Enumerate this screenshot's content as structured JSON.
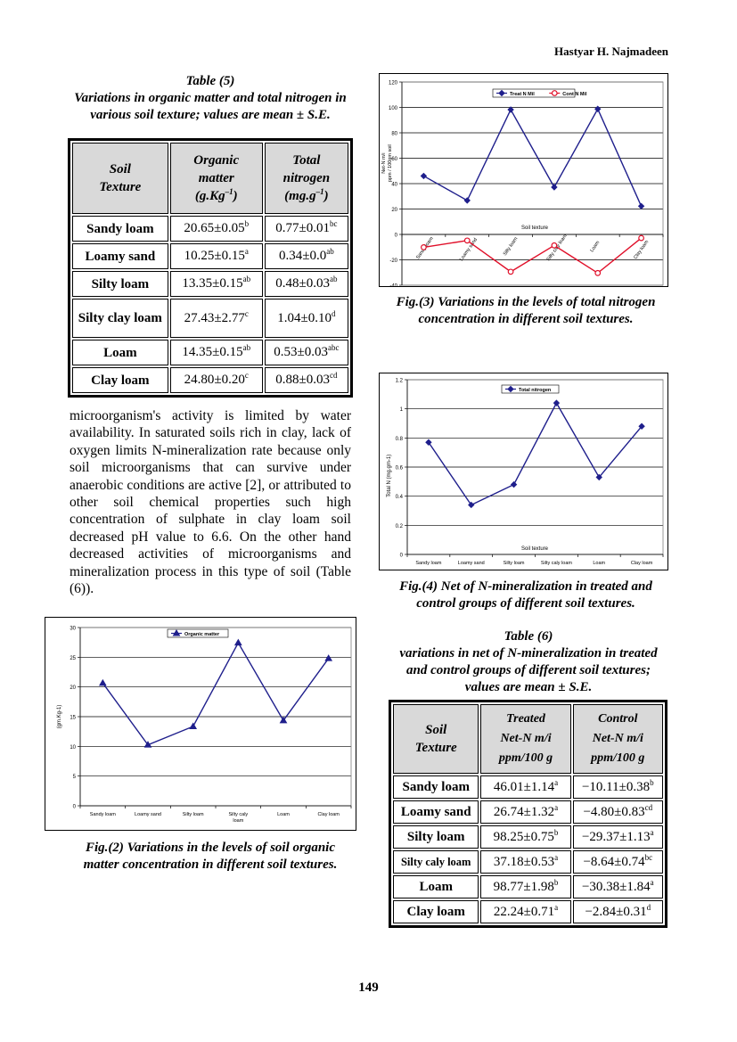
{
  "header": {
    "author": "Hastyar H. Najmadeen"
  },
  "table5": {
    "number": "Table (5)",
    "title": "Variations in organic matter and total nitrogen in various soil texture; values are mean ± S.E.",
    "headers": {
      "c1a": "Soil",
      "c1b": "Texture",
      "c2a": "Organic",
      "c2b": "matter",
      "c2c": "(g.Kg",
      "c2sup": "–1",
      "c2d": ")",
      "c3a": "Total",
      "c3b": "nitrogen",
      "c3c": "(mg.g",
      "c3sup": "–1",
      "c3d": ")"
    },
    "rows": [
      {
        "soil": "Sandy loam",
        "om": "20.65±0.05",
        "om_sup": "b",
        "tn": "0.77±0.01",
        "tn_sup": "bc"
      },
      {
        "soil": "Loamy sand",
        "om": "10.25±0.15",
        "om_sup": "a",
        "tn": "0.34±0.0",
        "tn_sup": "ab"
      },
      {
        "soil": "Silty loam",
        "om": "13.35±0.15",
        "om_sup": "ab",
        "tn": "0.48±0.03",
        "tn_sup": "ab"
      },
      {
        "soil": "Silty clay loam",
        "om": "27.43±2.77",
        "om_sup": "c",
        "tn": "1.04±0.10",
        "tn_sup": "d"
      },
      {
        "soil": "Loam",
        "om": "14.35±0.15",
        "om_sup": "ab",
        "tn": "0.53±0.03",
        "tn_sup": "abc"
      },
      {
        "soil": "Clay loam",
        "om": "24.80±0.20",
        "om_sup": "c",
        "tn": "0.88±0.03",
        "tn_sup": "cd"
      }
    ]
  },
  "body_text": "microorganism's activity is limited by water availability. In saturated soils rich in clay, lack of oxygen limits N-mineralization rate because only soil microorganisms that can survive under anaerobic conditions are active [2], or attributed to other soil chemical properties such high concentration of sulphate in clay loam soil decreased pH value to 6.6. On the other hand decreased activities of microorganisms and mineralization process in this type of soil (Table (6)).",
  "fig2": {
    "caption": "Fig.(2) Variations in the levels of soil organic matter concentration in different soil textures."
  },
  "fig3": {
    "caption": "Fig.(3) Variations in the levels of total nitrogen concentration in different soil textures."
  },
  "fig4": {
    "caption": "Fig.(4) Net of N-mineralization in treated and control groups of different soil textures."
  },
  "table6": {
    "number": "Table (6)",
    "title": "variations in net of N-mineralization in treated and control groups of different soil textures; values are mean ± S.E.",
    "headers": {
      "c1a": "Soil",
      "c1b": "Texture",
      "c2a": "Treated",
      "c2b": "Net-N m/i",
      "c2c": "ppm/100 g",
      "c3a": "Control",
      "c3b": "Net-N m/i",
      "c3c": "ppm/100 g"
    },
    "rows": [
      {
        "soil": "Sandy loam",
        "tr": "46.01±1.14",
        "tr_sup": "a",
        "ct": "−10.11±0.38",
        "ct_sup": "b"
      },
      {
        "soil": "Loamy sand",
        "tr": "26.74±1.32",
        "tr_sup": "a",
        "ct": "−4.80±0.83",
        "ct_sup": "cd"
      },
      {
        "soil": "Silty loam",
        "tr": "98.25±0.75",
        "tr_sup": "b",
        "ct": "−29.37±1.13",
        "ct_sup": "a"
      },
      {
        "soil": "Silty caly loam",
        "tr": "37.18±0.53",
        "tr_sup": "a",
        "ct": "−8.64±0.74",
        "ct_sup": "bc"
      },
      {
        "soil": "Loam",
        "tr": "98.77±1.98",
        "tr_sup": "b",
        "ct": "−30.38±1.84",
        "ct_sup": "a"
      },
      {
        "soil": "Clay loam",
        "tr": "22.24±0.71",
        "tr_sup": "a",
        "ct": "−2.84±0.31",
        "ct_sup": "d"
      }
    ]
  },
  "page_number": "149",
  "chart_data": [
    {
      "id": "fig3",
      "type": "line",
      "categories": [
        "Sandy loam",
        "Loamy sand",
        "Silty loam",
        "Silty caly loam",
        "Loam",
        "Clay loam"
      ],
      "series": [
        {
          "name": "Treat N Mil",
          "values": [
            46.01,
            26.74,
            98.25,
            37.18,
            98.77,
            22.24
          ],
          "color": "#1f1f8c",
          "marker": "diamond"
        },
        {
          "name": "Cont N Mil",
          "values": [
            -10.11,
            -4.8,
            -29.37,
            -8.64,
            -30.38,
            -2.84
          ],
          "color": "#e0102a",
          "marker": "circle"
        }
      ],
      "ylabel": "Net-N m/i ppm / 100gm soil",
      "xlabel": "Soil texture",
      "ylim": [
        -40,
        120
      ],
      "yticks": [
        "120",
        "100",
        "80",
        "60",
        "40",
        "20",
        "0",
        "-20",
        "-40"
      ],
      "grid": true,
      "legend": "top-right"
    },
    {
      "id": "fig4",
      "type": "line",
      "categories": [
        "Sandy loam",
        "Loamy sand",
        "Silty loam",
        "Silty caly loam",
        "Loam",
        "Clay loam"
      ],
      "series": [
        {
          "name": "Total nitrogen",
          "values": [
            0.77,
            0.34,
            0.48,
            1.04,
            0.53,
            0.88
          ],
          "color": "#1f1f8c",
          "marker": "diamond"
        }
      ],
      "ylabel": "Total N (mg.gm-1)",
      "xlabel": "Soil texture",
      "ylim": [
        0,
        1.2
      ],
      "yticks": [
        "1.2",
        "1",
        "0.8",
        "0.6",
        "0.4",
        "0.2",
        "0"
      ],
      "grid": true,
      "legend": "top-right"
    },
    {
      "id": "fig2",
      "type": "line",
      "categories": [
        "Sandy loam",
        "Loamy sand",
        "Silty loam",
        "Silty caly loam",
        "Loam",
        "Clay loam"
      ],
      "series": [
        {
          "name": "Organic matter",
          "values": [
            20.65,
            10.25,
            13.35,
            27.43,
            14.35,
            24.8
          ],
          "color": "#1f1f8c",
          "marker": "triangle"
        }
      ],
      "ylabel": "(gm.Kg-1)",
      "xlabel": "",
      "ylim": [
        0,
        30
      ],
      "yticks": [
        "30",
        "25",
        "20",
        "15",
        "10",
        "5",
        "0"
      ],
      "grid": true,
      "legend": "top-center"
    }
  ]
}
